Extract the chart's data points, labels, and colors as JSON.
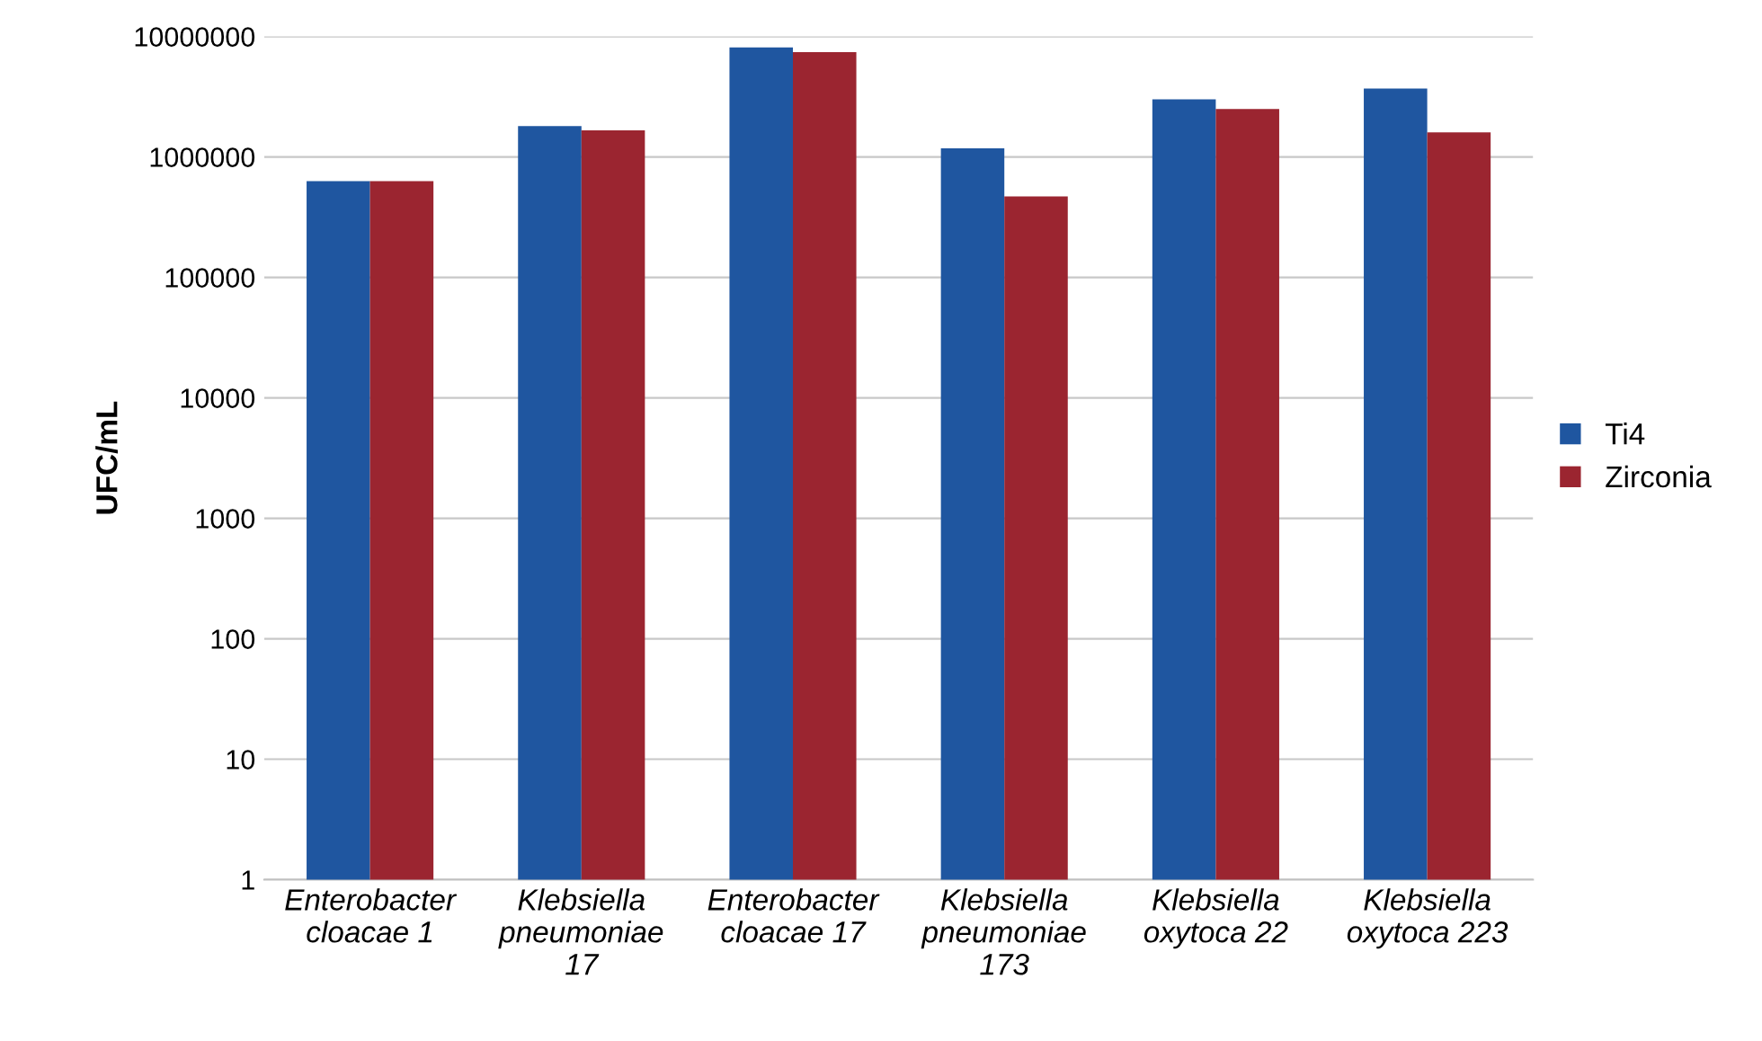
{
  "chart_data": {
    "type": "bar",
    "ylabel": "UFC/mL",
    "categories": [
      "Enterobacter\ncloacae 1",
      "Klebsiella\npneumoniae\n17",
      "Enterobacter\ncloacae 17",
      "Klebsiella\npneumoniae\n173",
      "Klebsiella\noxytoca 22",
      "Klebsiella\noxytoca 223"
    ],
    "series": [
      {
        "name": "Ti4",
        "color": "#1f56a0",
        "values": [
          630000,
          1800000,
          8100000,
          1180000,
          3000000,
          3700000
        ]
      },
      {
        "name": "Zirconia",
        "color": "#9b2530",
        "values": [
          630000,
          1660000,
          7400000,
          470000,
          2500000,
          1600000
        ]
      }
    ],
    "log": "y",
    "ylim": [
      1,
      10000000
    ],
    "yticks": [
      1,
      10,
      100,
      1000,
      10000,
      100000,
      1000000,
      10000000
    ],
    "grid": "y",
    "legend": "right"
  }
}
